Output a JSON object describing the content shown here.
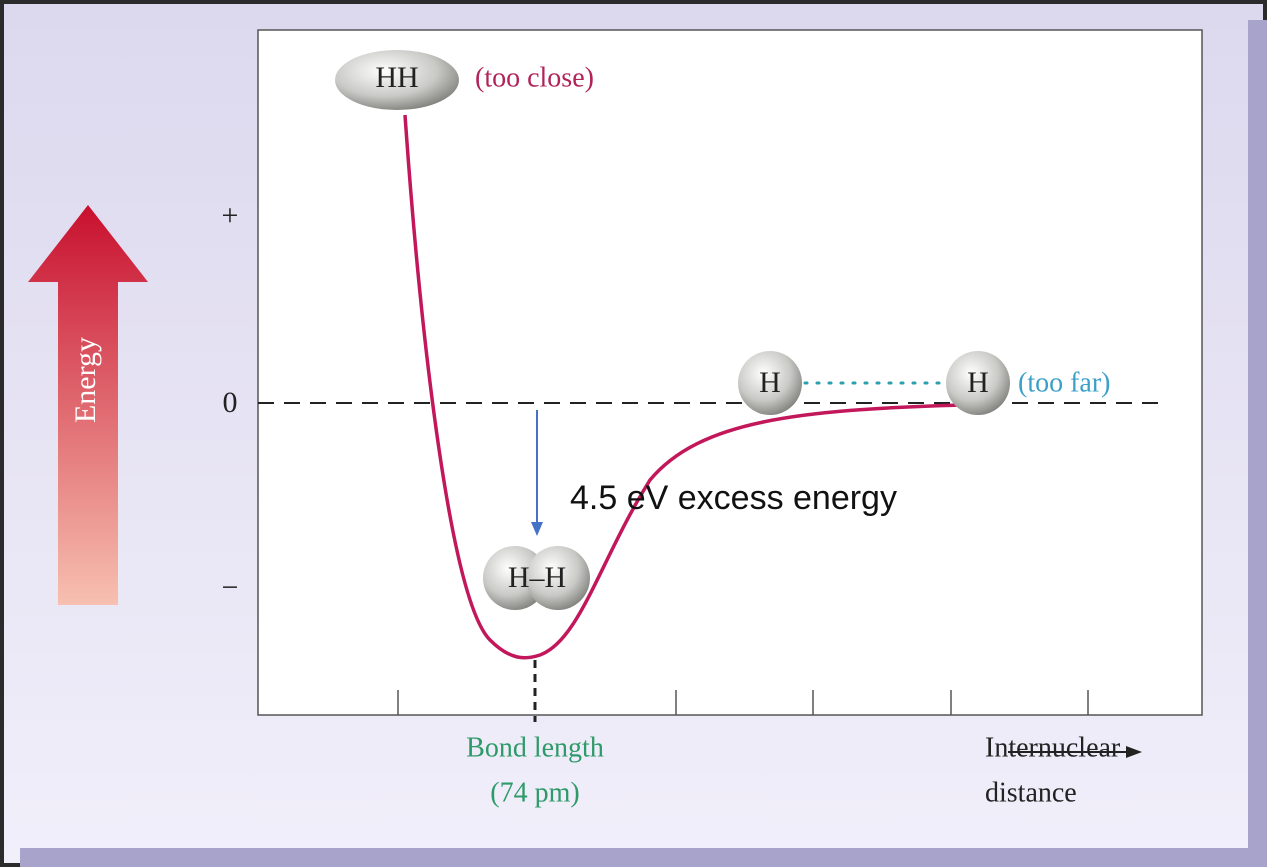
{
  "energy_axis": {
    "label": "Energy",
    "plus": "+",
    "zero": "0",
    "minus": "−"
  },
  "molecules": {
    "too_close": {
      "label": "HH",
      "note": "(too close)"
    },
    "too_far": {
      "left": "H",
      "right": "H",
      "note": "(too far)"
    },
    "bonded": {
      "label": "H–H"
    }
  },
  "annotation": "4.5 eV excess energy",
  "bond_length": {
    "line1": "Bond length",
    "line2": "(74 pm)"
  },
  "x_axis": {
    "line1": "Internuclear",
    "line2": "distance"
  }
}
